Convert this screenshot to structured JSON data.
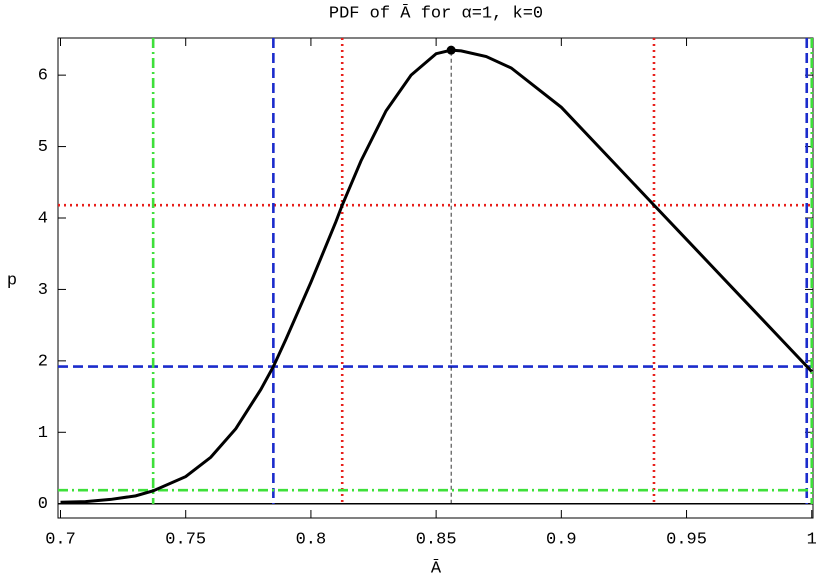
{
  "chart_data": {
    "type": "line",
    "title": "PDF of Ā for α=1, k=0",
    "x_label": "Ā",
    "y_label": "p",
    "xlim": [
      0.699,
      1.0005
    ],
    "ylim": [
      -0.2,
      6.52
    ],
    "xticks": [
      0.7,
      0.75,
      0.8,
      0.85,
      0.9,
      0.95,
      1
    ],
    "yticks": [
      0,
      1,
      2,
      3,
      4,
      5,
      6
    ],
    "series": [
      {
        "color": "#000000",
        "x": [
          0.7,
          0.71,
          0.72,
          0.73,
          0.737,
          0.75,
          0.76,
          0.77,
          0.78,
          0.785,
          0.79,
          0.8,
          0.81,
          0.8125,
          0.82,
          0.83,
          0.84,
          0.85,
          0.856,
          0.86,
          0.87,
          0.88,
          0.9,
          0.92,
          0.937,
          0.95,
          0.96,
          0.97,
          0.98,
          0.99,
          1.0
        ],
        "values": [
          0.02,
          0.03,
          0.06,
          0.11,
          0.18,
          0.38,
          0.65,
          1.05,
          1.6,
          1.92,
          2.3,
          3.1,
          3.95,
          4.18,
          4.8,
          5.5,
          6.0,
          6.3,
          6.35,
          6.34,
          6.26,
          6.1,
          5.55,
          4.81,
          4.18,
          3.7,
          3.33,
          2.96,
          2.59,
          2.22,
          1.85
        ]
      }
    ],
    "peak": {
      "x": 0.856,
      "y": 6.35
    },
    "reference_lines": [
      {
        "axis": "y",
        "value": 0,
        "color": "#000000",
        "style": "solid"
      },
      {
        "axis": "y",
        "value": 4.18,
        "color": "#e8201c",
        "style": "dotted"
      },
      {
        "axis": "x",
        "value": 0.8125,
        "color": "#e8201c",
        "style": "dotted"
      },
      {
        "axis": "x",
        "value": 0.937,
        "color": "#e8201c",
        "style": "dotted"
      },
      {
        "axis": "y",
        "value": 1.92,
        "color": "#1b2ccc",
        "style": "dashed"
      },
      {
        "axis": "x",
        "value": 0.785,
        "color": "#1b2ccc",
        "style": "dashed"
      },
      {
        "axis": "x",
        "value": 0.998,
        "color": "#1b2ccc",
        "style": "dashed"
      },
      {
        "axis": "y",
        "value": 0.19,
        "color": "#3ee03a",
        "style": "dashdot"
      },
      {
        "axis": "x",
        "value": 0.737,
        "color": "#3ee03a",
        "style": "dashdot"
      },
      {
        "axis": "x",
        "value": 1.0,
        "color": "#3ee03a",
        "style": "dashdot"
      }
    ]
  }
}
